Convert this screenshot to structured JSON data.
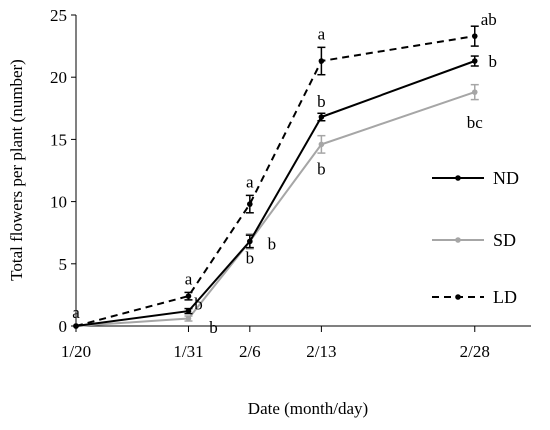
{
  "chart_data": {
    "type": "line",
    "title": "",
    "xlabel": "Date (month/day)",
    "ylabel": "Total flowers per plant (number)",
    "ylim": [
      0,
      25
    ],
    "yticks": [
      "0",
      "5",
      "10",
      "15",
      "20",
      "25"
    ],
    "x_is_date": true,
    "x": [
      "1/20",
      "1/31",
      "2/6",
      "2/13",
      "2/28"
    ],
    "x_days": [
      0,
      11,
      17,
      24,
      39
    ],
    "grid": false,
    "legend_position": "right",
    "series": [
      {
        "name": "ND",
        "color": "#000000",
        "dash": "solid",
        "values": [
          0,
          1.2,
          6.8,
          16.8,
          21.3
        ],
        "errors": [
          0,
          0.2,
          0.5,
          0.3,
          0.4
        ],
        "letters": [
          "",
          "b",
          "b",
          "b",
          "b"
        ]
      },
      {
        "name": "SD",
        "color": "#a6a6a6",
        "dash": "solid",
        "values": [
          0,
          0.6,
          6.8,
          14.6,
          18.8
        ],
        "errors": [
          0,
          0.2,
          0.6,
          0.7,
          0.6
        ],
        "letters": [
          "",
          "b",
          "b",
          "b",
          "bc"
        ]
      },
      {
        "name": "LD",
        "color": "#000000",
        "dash": "dashed",
        "values": [
          0,
          2.4,
          9.8,
          21.3,
          23.3
        ],
        "errors": [
          0,
          0.3,
          0.7,
          1.1,
          0.8
        ],
        "letters": [
          "a",
          "a",
          "a",
          "a",
          "ab"
        ]
      }
    ]
  }
}
